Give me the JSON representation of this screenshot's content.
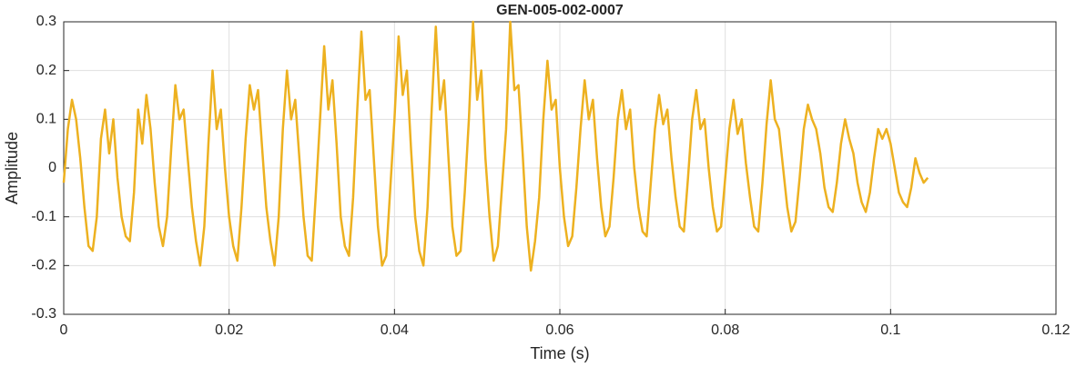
{
  "chart_data": {
    "type": "line",
    "title": "GEN-005-002-0007",
    "xlabel": "Time (s)",
    "ylabel": "Amplitude",
    "xlim": [
      0,
      0.12
    ],
    "xticks": [
      0,
      0.02,
      0.04,
      0.06,
      0.08,
      0.1,
      0.12
    ],
    "ylim": [
      -0.3,
      0.3
    ],
    "yticks": [
      -0.3,
      -0.2,
      -0.1,
      0,
      0.1,
      0.2,
      0.3
    ],
    "grid": true,
    "x": [
      0,
      0.0005,
      0.001,
      0.0015,
      0.002,
      0.0025,
      0.003,
      0.0035,
      0.004,
      0.0045,
      0.005,
      0.0055,
      0.006,
      0.0065,
      0.007,
      0.0075,
      0.008,
      0.0085,
      0.009,
      0.0095,
      0.01,
      0.0105,
      0.011,
      0.0115,
      0.012,
      0.0125,
      0.013,
      0.0135,
      0.014,
      0.0145,
      0.015,
      0.0155,
      0.016,
      0.0165,
      0.017,
      0.0175,
      0.018,
      0.0185,
      0.019,
      0.0195,
      0.02,
      0.0205,
      0.021,
      0.0215,
      0.022,
      0.0225,
      0.023,
      0.0235,
      0.024,
      0.0245,
      0.025,
      0.0255,
      0.026,
      0.0265,
      0.027,
      0.0275,
      0.028,
      0.0285,
      0.029,
      0.0295,
      0.03,
      0.0305,
      0.031,
      0.0315,
      0.032,
      0.0325,
      0.033,
      0.0335,
      0.034,
      0.0345,
      0.035,
      0.0355,
      0.036,
      0.0365,
      0.037,
      0.0375,
      0.038,
      0.0385,
      0.039,
      0.0395,
      0.04,
      0.0405,
      0.041,
      0.0415,
      0.042,
      0.0425,
      0.043,
      0.0435,
      0.044,
      0.0445,
      0.045,
      0.0455,
      0.046,
      0.0465,
      0.047,
      0.0475,
      0.048,
      0.0485,
      0.049,
      0.0495,
      0.05,
      0.0505,
      0.051,
      0.0515,
      0.052,
      0.0525,
      0.053,
      0.0535,
      0.054,
      0.0545,
      0.055,
      0.0555,
      0.056,
      0.0565,
      0.057,
      0.0575,
      0.058,
      0.0585,
      0.059,
      0.0595,
      0.06,
      0.0605,
      0.061,
      0.0615,
      0.062,
      0.0625,
      0.063,
      0.0635,
      0.064,
      0.0645,
      0.065,
      0.0655,
      0.066,
      0.0665,
      0.067,
      0.0675,
      0.068,
      0.0685,
      0.069,
      0.0695,
      0.07,
      0.0705,
      0.071,
      0.0715,
      0.072,
      0.0725,
      0.073,
      0.0735,
      0.074,
      0.0745,
      0.075,
      0.0755,
      0.076,
      0.0765,
      0.077,
      0.0775,
      0.078,
      0.0785,
      0.079,
      0.0795,
      0.08,
      0.0805,
      0.081,
      0.0815,
      0.082,
      0.0825,
      0.083,
      0.0835,
      0.084,
      0.0845,
      0.085,
      0.0855,
      0.086,
      0.0865,
      0.087,
      0.0875,
      0.088,
      0.0885,
      0.089,
      0.0895,
      0.09,
      0.0905,
      0.091,
      0.0915,
      0.092,
      0.0925,
      0.093,
      0.0935,
      0.094,
      0.0945,
      0.095,
      0.0955,
      0.096,
      0.0965,
      0.097,
      0.0975,
      0.098,
      0.0985,
      0.099,
      0.0995,
      0.1,
      0.1005,
      0.101,
      0.1015,
      0.102,
      0.1025,
      0.103,
      0.1035,
      0.104,
      0.1045
    ],
    "series": [
      {
        "name": "Amplitude",
        "color": "#edb120",
        "values": [
          -0.03,
          0.08,
          0.14,
          0.1,
          0.02,
          -0.08,
          -0.16,
          -0.17,
          -0.1,
          0.06,
          0.12,
          0.03,
          0.1,
          -0.02,
          -0.1,
          -0.14,
          -0.15,
          -0.05,
          0.12,
          0.05,
          0.15,
          0.08,
          -0.03,
          -0.12,
          -0.16,
          -0.1,
          0.04,
          0.17,
          0.1,
          0.12,
          0.02,
          -0.08,
          -0.15,
          -0.2,
          -0.12,
          0.05,
          0.2,
          0.08,
          0.12,
          0.0,
          -0.1,
          -0.16,
          -0.19,
          -0.08,
          0.06,
          0.17,
          0.12,
          0.16,
          0.04,
          -0.08,
          -0.15,
          -0.2,
          -0.1,
          0.08,
          0.2,
          0.1,
          0.14,
          0.02,
          -0.1,
          -0.18,
          -0.19,
          -0.05,
          0.1,
          0.25,
          0.12,
          0.18,
          0.05,
          -0.1,
          -0.16,
          -0.18,
          -0.06,
          0.12,
          0.28,
          0.14,
          0.16,
          0.02,
          -0.12,
          -0.2,
          -0.18,
          -0.04,
          0.1,
          0.27,
          0.15,
          0.2,
          0.04,
          -0.1,
          -0.17,
          -0.2,
          -0.08,
          0.12,
          0.29,
          0.12,
          0.18,
          0.03,
          -0.12,
          -0.18,
          -0.17,
          -0.05,
          0.1,
          0.3,
          0.14,
          0.2,
          0.02,
          -0.1,
          -0.19,
          -0.16,
          -0.04,
          0.08,
          0.3,
          0.16,
          0.17,
          0.03,
          -0.12,
          -0.21,
          -0.15,
          -0.06,
          0.1,
          0.22,
          0.12,
          0.14,
          0.0,
          -0.1,
          -0.16,
          -0.14,
          -0.04,
          0.08,
          0.18,
          0.1,
          0.14,
          0.02,
          -0.08,
          -0.14,
          -0.12,
          -0.02,
          0.1,
          0.16,
          0.08,
          0.12,
          0.0,
          -0.08,
          -0.13,
          -0.14,
          -0.03,
          0.08,
          0.15,
          0.09,
          0.12,
          0.02,
          -0.06,
          -0.12,
          -0.13,
          -0.02,
          0.1,
          0.16,
          0.08,
          0.1,
          0.0,
          -0.08,
          -0.13,
          -0.12,
          -0.02,
          0.08,
          0.14,
          0.07,
          0.1,
          0.01,
          -0.06,
          -0.12,
          -0.13,
          -0.03,
          0.09,
          0.18,
          0.1,
          0.08,
          0.0,
          -0.08,
          -0.13,
          -0.11,
          -0.02,
          0.08,
          0.13,
          0.1,
          0.08,
          0.03,
          -0.04,
          -0.08,
          -0.09,
          -0.03,
          0.05,
          0.1,
          0.06,
          0.03,
          -0.03,
          -0.07,
          -0.09,
          -0.05,
          0.02,
          0.08,
          0.06,
          0.08,
          0.05,
          0.0,
          -0.05,
          -0.07,
          -0.08,
          -0.04,
          0.02,
          -0.01,
          -0.03,
          -0.02
        ]
      }
    ]
  }
}
